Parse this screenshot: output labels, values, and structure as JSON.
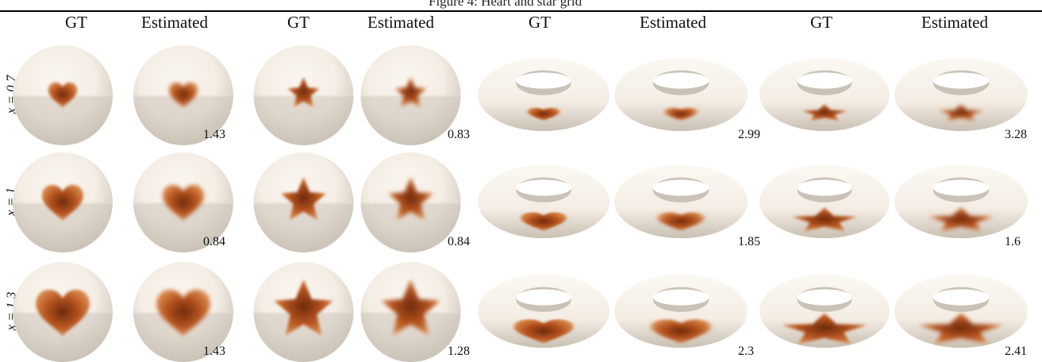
{
  "header_fragment": "Figure 4: Heart and star grid",
  "column_labels": [
    "GT",
    "Estimated",
    "GT",
    "Estimated",
    "GT",
    "Estimated",
    "GT",
    "Estimated"
  ],
  "row_labels": [
    "x = 0.7",
    "x = 1",
    "x = 1.3"
  ],
  "row_scales": [
    0.7,
    1,
    1.3
  ],
  "column_shapes": [
    "heart",
    "heart",
    "star",
    "star",
    "heart",
    "heart",
    "star",
    "star"
  ],
  "column_surfaces": [
    "sphere",
    "sphere",
    "sphere",
    "sphere",
    "torus",
    "torus",
    "torus",
    "torus"
  ],
  "column_kind": [
    "gt",
    "estimated",
    "gt",
    "estimated",
    "gt",
    "estimated",
    "gt",
    "estimated"
  ],
  "errors": [
    [
      "1.43",
      "0.83",
      "2.99",
      "3.28"
    ],
    [
      "0.84",
      "0.84",
      "1.85",
      "1.6"
    ],
    [
      "1.43",
      "1.28",
      "2.3",
      "2.41"
    ]
  ],
  "colors": {
    "surface_light": "#f4ede4",
    "surface_shadow": "#c9c0b3",
    "heat_core": "#6e2a0c",
    "heat_mid": "#b4521e",
    "heat_edge": "#d98a4e"
  }
}
